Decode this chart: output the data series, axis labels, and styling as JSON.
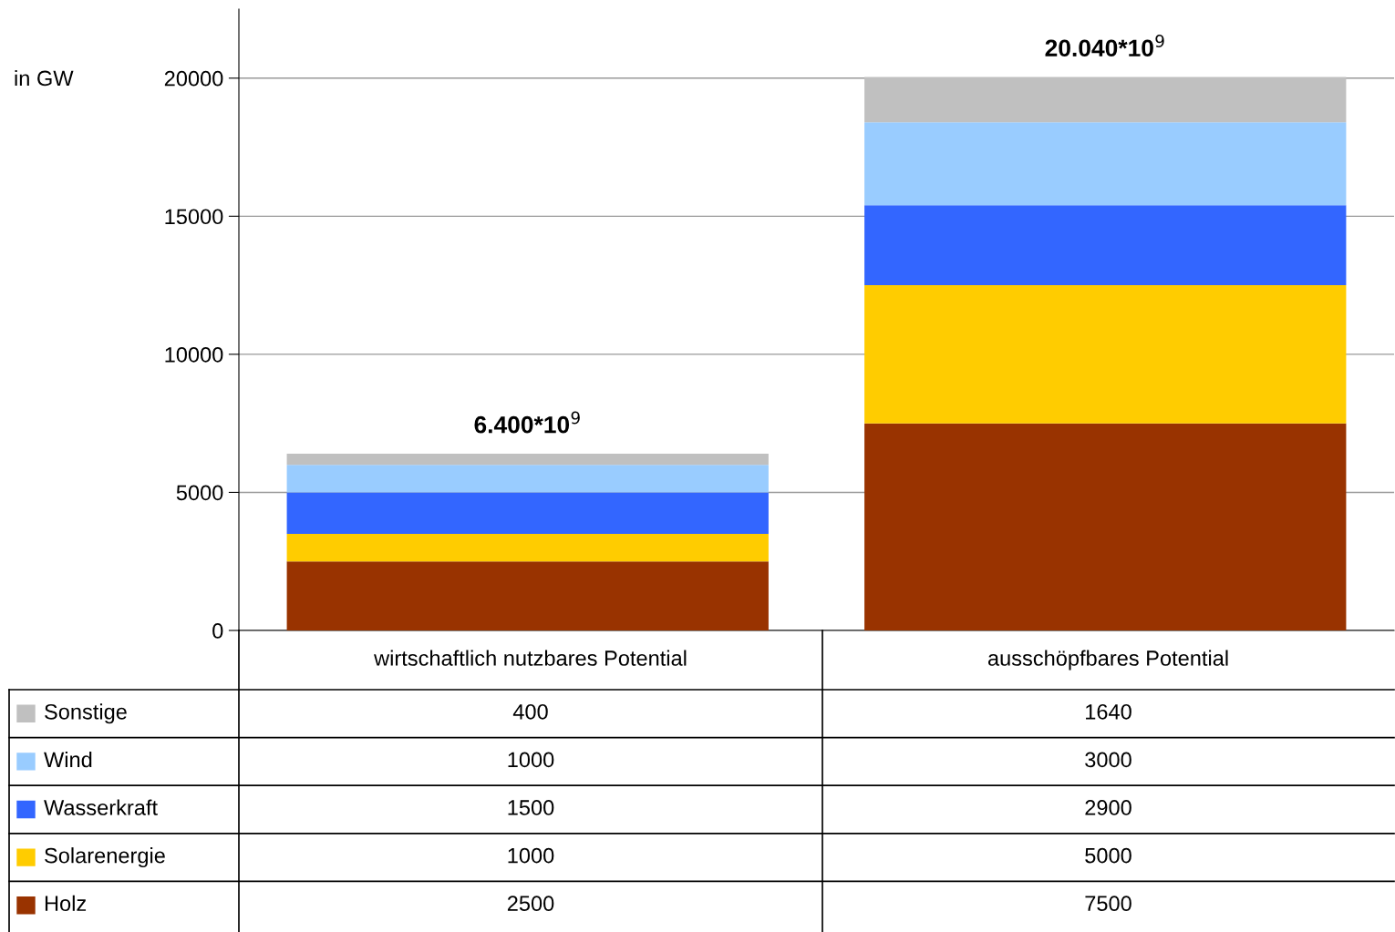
{
  "chart_data": {
    "type": "bar",
    "stacked": true,
    "ylabel": "in GW",
    "categories": [
      "wirtschaftlich nutzbares Potential",
      "ausschöpfbares Potential"
    ],
    "series": [
      {
        "name": "Holz",
        "color": "#993300",
        "values": [
          2500,
          7500
        ]
      },
      {
        "name": "Solarenergie",
        "color": "#ffcc00",
        "values": [
          1000,
          5000
        ]
      },
      {
        "name": "Wasserkraft",
        "color": "#3366ff",
        "values": [
          1500,
          2900
        ]
      },
      {
        "name": "Wind",
        "color": "#99ccff",
        "values": [
          1000,
          3000
        ]
      },
      {
        "name": "Sonstige",
        "color": "#c0c0c0",
        "values": [
          400,
          1640
        ]
      }
    ],
    "totals": [
      "6.400*10$^{9}$",
      "20.040*10$^{9}$"
    ],
    "ylim": [
      0,
      22500
    ],
    "yticks": [
      0,
      5000,
      10000,
      15000,
      20000
    ],
    "grid": "y",
    "data_labels": true,
    "legend": "left"
  }
}
